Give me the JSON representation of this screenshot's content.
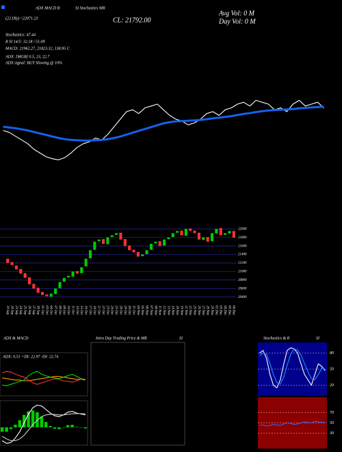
{
  "chart_data": [
    {
      "type": "line",
      "annotations": [
        "(22 Dly) ~22071.23",
        "ADX MACD B",
        "SI Stochastics MR",
        "CL: 21792.00",
        "Avg Vol: 0 M",
        "Day Vol: 0 M",
        "Stochastics: 47.44",
        "R SI 14/5: 32.18 / 51.09",
        "MACD: 21962.27, 21823.32, 138.95 C",
        "ADX: [MGB] 0.5, 23, 22.7",
        "ADX signal: BUY Slowing @ 10%"
      ],
      "ylim": [
        20300,
        22300
      ],
      "series": [
        {
          "color": "#ffffff",
          "values": [
            21200,
            21150,
            21050,
            20950,
            20850,
            20700,
            20600,
            20500,
            20450,
            20420,
            20480,
            20600,
            20750,
            20850,
            20900,
            21000,
            20950,
            21100,
            21300,
            21500,
            21700,
            21750,
            21650,
            21800,
            21850,
            21900,
            21750,
            21600,
            21500,
            21450,
            21350,
            21400,
            21500,
            21650,
            21700,
            21600,
            21750,
            21800,
            21900,
            21950,
            21850,
            22000,
            21950,
            21900,
            21750,
            21800,
            21700,
            21900,
            22000,
            21850,
            21900,
            21950,
            21792
          ]
        },
        {
          "color": "#1560f0",
          "values": [
            21300,
            21280,
            21260,
            21230,
            21200,
            21160,
            21120,
            21080,
            21040,
            21000,
            20970,
            20950,
            20940,
            20930,
            20930,
            20940,
            20950,
            20970,
            21000,
            21040,
            21090,
            21140,
            21190,
            21240,
            21290,
            21340,
            21390,
            21420,
            21440,
            21450,
            21460,
            21470,
            21480,
            21500,
            21520,
            21540,
            21560,
            21580,
            21610,
            21640,
            21660,
            21690,
            21710,
            21730,
            21740,
            21750,
            21760,
            21770,
            21790,
            21800,
            21810,
            21820,
            21830
          ]
        }
      ]
    },
    {
      "type": "candlestick",
      "categories": [
        "19 Sep",
        "20 Sep",
        "23 Sep",
        "24 Sep",
        "25 Sep",
        "26 Sep",
        "27 Sep",
        "30 Sep",
        "01 Oct",
        "03 Oct",
        "04 Oct",
        "07 Oct",
        "08 Oct",
        "09 Oct",
        "10 Oct",
        "11 Oct",
        "14 Oct",
        "15 Oct",
        "16 Oct",
        "17 Oct",
        "18 Oct",
        "21 Oct",
        "22 Oct",
        "23 Oct",
        "24 Oct",
        "25 Oct",
        "28 Oct",
        "29 Oct",
        "30 Oct",
        "31 Oct",
        "04 Nov",
        "05 Nov",
        "06 Nov",
        "07 Nov",
        "08 Nov",
        "11 Nov",
        "12 Nov",
        "13 Nov",
        "14 Nov",
        "18 Nov",
        "19 Nov",
        "21 Nov",
        "22 Nov",
        "25 Nov",
        "26 Nov",
        "27 Nov",
        "28 Nov",
        "29 Nov",
        "02 Dec",
        "03 Dec",
        "04 Dec",
        "05 Dec",
        "06 Dec"
      ],
      "open": [
        21300,
        21220,
        21140,
        21060,
        20960,
        20860,
        20710,
        20620,
        20520,
        20460,
        20410,
        20470,
        20610,
        20760,
        20860,
        20880,
        21010,
        20960,
        21120,
        21310,
        21510,
        21710,
        21760,
        21640,
        21810,
        21860,
        21910,
        21760,
        21610,
        21510,
        21460,
        21360,
        21410,
        21510,
        21660,
        21710,
        21610,
        21760,
        21810,
        21910,
        21960,
        21840,
        22010,
        21960,
        21910,
        21740,
        21810,
        21710,
        21890,
        22020,
        21860,
        21890,
        21950
      ],
      "close": [
        21200,
        21150,
        21050,
        20950,
        20850,
        20700,
        20600,
        20500,
        20450,
        20420,
        20480,
        20600,
        20750,
        20850,
        20900,
        21000,
        20950,
        21100,
        21300,
        21500,
        21700,
        21750,
        21650,
        21800,
        21850,
        21900,
        21750,
        21600,
        21500,
        21450,
        21350,
        21400,
        21500,
        21650,
        21700,
        21600,
        21750,
        21800,
        21900,
        21950,
        21850,
        22000,
        21950,
        21900,
        21750,
        21800,
        21700,
        21900,
        22000,
        21850,
        21900,
        21950,
        21792
      ],
      "up_color": "#00cc00",
      "down_color": "#ff3333",
      "grid_color": "#2a2ab0",
      "ylim": [
        20300,
        22100
      ],
      "yticks": [
        20400,
        20600,
        20800,
        21000,
        21200,
        21400,
        21600,
        21800,
        22000
      ]
    },
    {
      "type": "line",
      "title": "ADX & MACD",
      "annotations": [
        "ADX: 0.51 +DI: 22.97 -DI: 22.74"
      ],
      "ylim": [
        0,
        60
      ],
      "series": [
        {
          "color": "#ff9900",
          "values": [
            25,
            24,
            23,
            22,
            22,
            21,
            21,
            22,
            23,
            24,
            25,
            26,
            27,
            27,
            26,
            25,
            24,
            23,
            23,
            22
          ]
        },
        {
          "color": "#00dd00",
          "values": [
            15,
            14,
            16,
            18,
            20,
            22,
            28,
            32,
            34,
            30,
            28,
            26,
            25,
            24,
            26,
            28,
            30,
            27,
            24,
            23
          ]
        },
        {
          "color": "#ff3333",
          "values": [
            32,
            34,
            33,
            30,
            28,
            26,
            22,
            18,
            16,
            18,
            20,
            22,
            24,
            23,
            21,
            20,
            19,
            21,
            23,
            23
          ]
        }
      ]
    },
    {
      "type": "line",
      "ylim": [
        -200,
        300
      ],
      "series": [
        {
          "kind": "bar",
          "color": "#00cc00",
          "values": [
            -50,
            -50,
            -20,
            30,
            80,
            140,
            180,
            190,
            170,
            120,
            60,
            15,
            -15,
            -20,
            0,
            25,
            28,
            5,
            -4,
            -12
          ]
        },
        {
          "color": "#ffffff",
          "values": [
            -150,
            -180,
            -170,
            -120,
            -50,
            50,
            150,
            220,
            250,
            240,
            200,
            160,
            130,
            120,
            140,
            170,
            180,
            160,
            150,
            140
          ]
        },
        {
          "color": "#cccccc",
          "values": [
            -100,
            -130,
            -150,
            -150,
            -130,
            -90,
            -30,
            30,
            80,
            120,
            140,
            145,
            145,
            140,
            140,
            145,
            152,
            155,
            154,
            152
          ]
        }
      ]
    },
    {
      "type": "line",
      "title": "Intra Day Trading Price & MR",
      "subtitle": "SI",
      "series": []
    },
    {
      "type": "line",
      "title": "Stochastics & R",
      "subtitle": "SI",
      "background": "#00008b",
      "ylim": [
        0,
        100
      ],
      "yticks": [
        20,
        50,
        80
      ],
      "series": [
        {
          "color": "#ffffff",
          "values": [
            80,
            85,
            70,
            40,
            20,
            15,
            30,
            60,
            85,
            90,
            88,
            80,
            60,
            40,
            30,
            20,
            40,
            60,
            55,
            47
          ]
        },
        {
          "color": "#1e90ff",
          "values": [
            75,
            80,
            78,
            60,
            40,
            25,
            22,
            35,
            58,
            78,
            88,
            86,
            76,
            60,
            45,
            32,
            30,
            40,
            52,
            50
          ]
        }
      ]
    },
    {
      "type": "line",
      "background": "#8b0000",
      "ylim": [
        0,
        100
      ],
      "yticks": [
        30,
        50,
        70
      ],
      "series": [
        {
          "color": "#3366ff",
          "values": [
            45,
            46,
            44,
            45,
            47,
            46,
            45,
            48,
            50,
            49,
            47,
            48,
            50,
            52,
            51,
            50,
            53,
            52,
            51,
            51
          ]
        }
      ]
    }
  ]
}
